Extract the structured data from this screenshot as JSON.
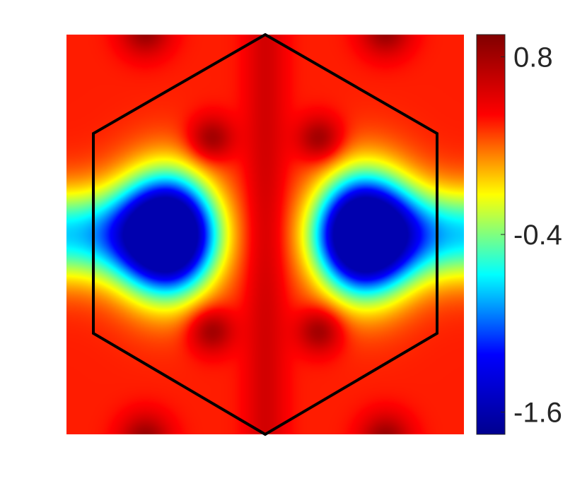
{
  "chart_data": {
    "type": "heatmap",
    "title": "",
    "xlabel": "",
    "ylabel": "",
    "grid": false,
    "overlay": "hexagon",
    "colormap": "jet",
    "colorbar": {
      "position": "right",
      "range": [
        -1.75,
        0.95
      ],
      "ticks": [
        0.8,
        -0.4,
        -1.6
      ],
      "tick_labels": [
        "0.8",
        "-0.4",
        "-1.6"
      ],
      "stops": [
        "#00008f",
        "#0000ff",
        "#00ffff",
        "#ffff00",
        "#ff0000",
        "#800000"
      ]
    },
    "value_range": [
      -1.6,
      0.85
    ],
    "features": [
      {
        "kind": "minimum",
        "u": -0.5,
        "v": 0.0,
        "value": -1.6
      },
      {
        "kind": "minimum",
        "u": 0.5,
        "v": 0.0,
        "value": -1.6
      },
      {
        "kind": "maximum",
        "u": -0.27,
        "v": -0.46,
        "value": 0.85
      },
      {
        "kind": "maximum",
        "u": 0.27,
        "v": -0.46,
        "value": 0.85
      },
      {
        "kind": "maximum",
        "u": -0.27,
        "v": 0.46,
        "value": 0.85
      },
      {
        "kind": "maximum",
        "u": 0.27,
        "v": 0.46,
        "value": 0.85
      }
    ],
    "hexagon_color": "#000000"
  }
}
